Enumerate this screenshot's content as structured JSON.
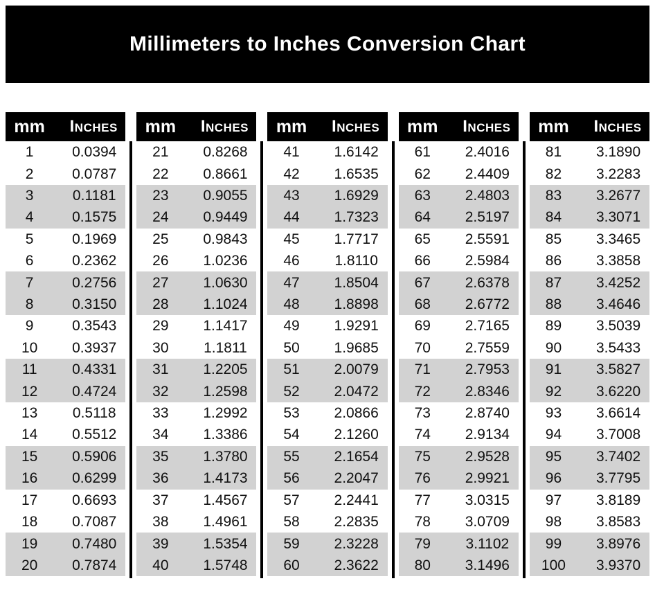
{
  "page_title": "Millimeters to Inches Conversion Chart",
  "column_labels": {
    "mm": "mm",
    "inches": "Inches"
  },
  "colors": {
    "banner_bg": "#000000",
    "banner_text": "#ffffff",
    "header_bg": "#000000",
    "header_text": "#ffffff",
    "row_stripe_bg": "#d2d2d2",
    "row_bg": "#ffffff",
    "body_text": "#101010"
  },
  "chart_data": {
    "type": "table",
    "title": "Millimeters to Inches Conversion Chart",
    "columns": [
      "mm",
      "Inches"
    ],
    "row_stripe_pattern": "alternating pairs: 2 white rows then 2 gray rows",
    "tables": [
      {
        "rows": [
          [
            "1",
            "0.0394"
          ],
          [
            "2",
            "0.0787"
          ],
          [
            "3",
            "0.1181"
          ],
          [
            "4",
            "0.1575"
          ],
          [
            "5",
            "0.1969"
          ],
          [
            "6",
            "0.2362"
          ],
          [
            "7",
            "0.2756"
          ],
          [
            "8",
            "0.3150"
          ],
          [
            "9",
            "0.3543"
          ],
          [
            "10",
            "0.3937"
          ],
          [
            "11",
            "0.4331"
          ],
          [
            "12",
            "0.4724"
          ],
          [
            "13",
            "0.5118"
          ],
          [
            "14",
            "0.5512"
          ],
          [
            "15",
            "0.5906"
          ],
          [
            "16",
            "0.6299"
          ],
          [
            "17",
            "0.6693"
          ],
          [
            "18",
            "0.7087"
          ],
          [
            "19",
            "0.7480"
          ],
          [
            "20",
            "0.7874"
          ]
        ]
      },
      {
        "rows": [
          [
            "21",
            "0.8268"
          ],
          [
            "22",
            "0.8661"
          ],
          [
            "23",
            "0.9055"
          ],
          [
            "24",
            "0.9449"
          ],
          [
            "25",
            "0.9843"
          ],
          [
            "26",
            "1.0236"
          ],
          [
            "27",
            "1.0630"
          ],
          [
            "28",
            "1.1024"
          ],
          [
            "29",
            "1.1417"
          ],
          [
            "30",
            "1.1811"
          ],
          [
            "31",
            "1.2205"
          ],
          [
            "32",
            "1.2598"
          ],
          [
            "33",
            "1.2992"
          ],
          [
            "34",
            "1.3386"
          ],
          [
            "35",
            "1.3780"
          ],
          [
            "36",
            "1.4173"
          ],
          [
            "37",
            "1.4567"
          ],
          [
            "38",
            "1.4961"
          ],
          [
            "39",
            "1.5354"
          ],
          [
            "40",
            "1.5748"
          ]
        ]
      },
      {
        "rows": [
          [
            "41",
            "1.6142"
          ],
          [
            "42",
            "1.6535"
          ],
          [
            "43",
            "1.6929"
          ],
          [
            "44",
            "1.7323"
          ],
          [
            "45",
            "1.7717"
          ],
          [
            "46",
            "1.8110"
          ],
          [
            "47",
            "1.8504"
          ],
          [
            "48",
            "1.8898"
          ],
          [
            "49",
            "1.9291"
          ],
          [
            "50",
            "1.9685"
          ],
          [
            "51",
            "2.0079"
          ],
          [
            "52",
            "2.0472"
          ],
          [
            "53",
            "2.0866"
          ],
          [
            "54",
            "2.1260"
          ],
          [
            "55",
            "2.1654"
          ],
          [
            "56",
            "2.2047"
          ],
          [
            "57",
            "2.2441"
          ],
          [
            "58",
            "2.2835"
          ],
          [
            "59",
            "2.3228"
          ],
          [
            "60",
            "2.3622"
          ]
        ]
      },
      {
        "rows": [
          [
            "61",
            "2.4016"
          ],
          [
            "62",
            "2.4409"
          ],
          [
            "63",
            "2.4803"
          ],
          [
            "64",
            "2.5197"
          ],
          [
            "65",
            "2.5591"
          ],
          [
            "66",
            "2.5984"
          ],
          [
            "67",
            "2.6378"
          ],
          [
            "68",
            "2.6772"
          ],
          [
            "69",
            "2.7165"
          ],
          [
            "70",
            "2.7559"
          ],
          [
            "71",
            "2.7953"
          ],
          [
            "72",
            "2.8346"
          ],
          [
            "73",
            "2.8740"
          ],
          [
            "74",
            "2.9134"
          ],
          [
            "75",
            "2.9528"
          ],
          [
            "76",
            "2.9921"
          ],
          [
            "77",
            "3.0315"
          ],
          [
            "78",
            "3.0709"
          ],
          [
            "79",
            "3.1102"
          ],
          [
            "80",
            "3.1496"
          ]
        ]
      },
      {
        "rows": [
          [
            "81",
            "3.1890"
          ],
          [
            "82",
            "3.2283"
          ],
          [
            "83",
            "3.2677"
          ],
          [
            "84",
            "3.3071"
          ],
          [
            "85",
            "3.3465"
          ],
          [
            "86",
            "3.3858"
          ],
          [
            "87",
            "3.4252"
          ],
          [
            "88",
            "3.4646"
          ],
          [
            "89",
            "3.5039"
          ],
          [
            "90",
            "3.5433"
          ],
          [
            "91",
            "3.5827"
          ],
          [
            "92",
            "3.6220"
          ],
          [
            "93",
            "3.6614"
          ],
          [
            "94",
            "3.7008"
          ],
          [
            "95",
            "3.7402"
          ],
          [
            "96",
            "3.7795"
          ],
          [
            "97",
            "3.8189"
          ],
          [
            "98",
            "3.8583"
          ],
          [
            "99",
            "3.8976"
          ],
          [
            "100",
            "3.9370"
          ]
        ]
      }
    ]
  }
}
